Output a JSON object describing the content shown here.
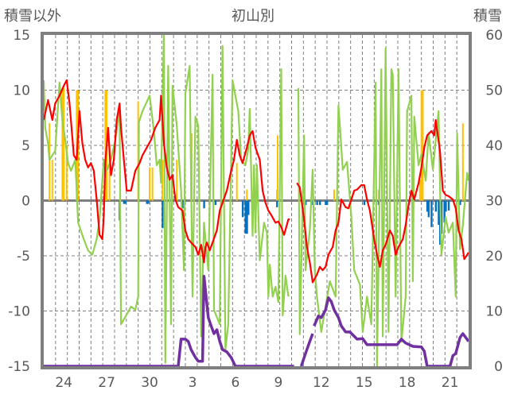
{
  "chart_data": {
    "type": "line",
    "title": "初山別",
    "ylabel_left": "積雪以外",
    "ylabel_right": "積雪",
    "grid": true,
    "x_range": [
      0,
      29.7
    ],
    "y_left_range": [
      -15,
      15
    ],
    "y_right_range": [
      0,
      60
    ],
    "y_left_ticks": [
      "15",
      "10",
      "5",
      "0",
      "-5",
      "-10",
      "-15"
    ],
    "y_left_tick_values": [
      15,
      10,
      5,
      0,
      -5,
      -10,
      -15
    ],
    "y_right_ticks": [
      "60",
      "50",
      "40",
      "30",
      "20",
      "10",
      "0"
    ],
    "y_right_tick_values": [
      60,
      50,
      40,
      30,
      20,
      10,
      0
    ],
    "x_ticks": [
      {
        "label": "24",
        "x": 1.4
      },
      {
        "label": "27",
        "x": 4.4
      },
      {
        "label": "30",
        "x": 7.4
      },
      {
        "label": "3",
        "x": 10.4
      },
      {
        "label": "6",
        "x": 13.4
      },
      {
        "label": "9",
        "x": 16.4
      },
      {
        "label": "12",
        "x": 19.4
      },
      {
        "label": "15",
        "x": 22.4
      },
      {
        "label": "18",
        "x": 25.4
      },
      {
        "label": "21",
        "x": 28.4
      }
    ],
    "colors": {
      "red": "#ff0000",
      "green": "#92d050",
      "purple": "#7030a0",
      "yellow": "#ffc000",
      "blue": "#0070c0",
      "frame": "#7f7f7f",
      "grid": "#7f7f7f"
    },
    "bars_yellow": [
      [
        0.4,
        7.0
      ],
      [
        0.6,
        3.7
      ],
      [
        1.3,
        10.2
      ],
      [
        1.4,
        10.2
      ],
      [
        1.6,
        5.0
      ],
      [
        2.3,
        10.0
      ],
      [
        2.4,
        10.0
      ],
      [
        4.3,
        10.0
      ],
      [
        4.4,
        10.0
      ],
      [
        4.6,
        5.0
      ],
      [
        6.6,
        9.0
      ],
      [
        7.4,
        3.0
      ],
      [
        7.6,
        3.0
      ],
      [
        8.3,
        3.7
      ],
      [
        9.3,
        3.7
      ],
      [
        10.3,
        1.9
      ],
      [
        10.35,
        6.1
      ],
      [
        13.5,
        3.4
      ],
      [
        14.2,
        1.0
      ],
      [
        16.3,
        1.0
      ],
      [
        16.35,
        5.9
      ],
      [
        20.3,
        1.0
      ],
      [
        23.4,
        1.0
      ],
      [
        26.3,
        1.9
      ],
      [
        26.4,
        10.0
      ],
      [
        26.5,
        10.0
      ],
      [
        29.3,
        7.0
      ]
    ],
    "bars_blue": [
      [
        5.3,
        -1.8
      ],
      [
        5.6,
        -0.3
      ],
      [
        5.7,
        -0.3
      ],
      [
        7.2,
        -0.3
      ],
      [
        7.3,
        -0.3
      ],
      [
        8.3,
        -2.5
      ],
      [
        9.7,
        -0.7
      ],
      [
        11.2,
        -0.7
      ],
      [
        12.0,
        -0.4
      ],
      [
        13.9,
        -1.5
      ],
      [
        14.1,
        -3.0
      ],
      [
        14.2,
        -3.0
      ],
      [
        14.3,
        -1.3
      ],
      [
        14.7,
        -0.6
      ],
      [
        16.3,
        -0.6
      ],
      [
        18.3,
        -0.4
      ],
      [
        18.8,
        -0.4
      ],
      [
        19.1,
        -0.4
      ],
      [
        19.3,
        -0.4
      ],
      [
        19.7,
        -0.4
      ],
      [
        19.8,
        -0.4
      ],
      [
        22.4,
        -0.4
      ],
      [
        23.4,
        -0.4
      ],
      [
        26.8,
        -1.0
      ],
      [
        26.9,
        -1.5
      ],
      [
        27.1,
        -2.4
      ],
      [
        27.4,
        -1.0
      ],
      [
        27.6,
        -2.2
      ],
      [
        27.7,
        -4.0
      ],
      [
        27.8,
        -3.0
      ],
      [
        28.0,
        -2.0
      ],
      [
        28.1,
        -1.0
      ],
      [
        28.3,
        -0.9
      ],
      [
        29.1,
        -0.4
      ]
    ],
    "line_green": [
      [
        0.0,
        10.9
      ],
      [
        0.1,
        6.6
      ],
      [
        0.3,
        5.2
      ],
      [
        0.4,
        3.7
      ],
      [
        0.6,
        4.1
      ],
      [
        0.8,
        4.5
      ],
      [
        1.1,
        10.7
      ],
      [
        1.3,
        7.3
      ],
      [
        1.5,
        5.5
      ],
      [
        1.7,
        3.4
      ],
      [
        1.9,
        2.7
      ],
      [
        2.2,
        3.7
      ],
      [
        2.4,
        -2.0
      ],
      [
        2.8,
        -3.5
      ],
      [
        3.1,
        -4.5
      ],
      [
        3.4,
        -4.9
      ],
      [
        3.7,
        -3.5
      ],
      [
        3.9,
        -1.7
      ],
      [
        4.2,
        3.7
      ],
      [
        4.4,
        2.7
      ],
      [
        4.7,
        3.7
      ],
      [
        5.0,
        5.5
      ],
      [
        5.3,
        8.3
      ],
      [
        5.4,
        -11.2
      ],
      [
        5.8,
        -10.3
      ],
      [
        6.1,
        -9.6
      ],
      [
        6.4,
        -9.9
      ],
      [
        6.6,
        -8.7
      ],
      [
        6.65,
        7.1
      ],
      [
        6.9,
        8.1
      ],
      [
        7.4,
        9.5
      ],
      [
        7.7,
        6.3
      ],
      [
        7.9,
        3.2
      ],
      [
        8.1,
        3.7
      ],
      [
        8.2,
        1.6
      ],
      [
        8.4,
        15.0
      ],
      [
        8.5,
        -14.7
      ],
      [
        8.7,
        12.2
      ],
      [
        8.9,
        -11.2
      ],
      [
        9.0,
        10.4
      ],
      [
        9.3,
        6.8
      ],
      [
        9.6,
        0.9
      ],
      [
        9.8,
        -6.3
      ],
      [
        9.9,
        9.7
      ],
      [
        10.2,
        12.2
      ],
      [
        10.4,
        -8.7
      ],
      [
        10.6,
        7.6
      ],
      [
        10.8,
        6.8
      ],
      [
        11.0,
        -12.3
      ],
      [
        11.2,
        -2.0
      ],
      [
        11.5,
        -6.3
      ],
      [
        11.8,
        11.4
      ],
      [
        11.9,
        -9.9
      ],
      [
        12.3,
        -11.2
      ],
      [
        12.5,
        14.0
      ],
      [
        12.7,
        -13.5
      ],
      [
        12.9,
        -11.2
      ],
      [
        13.2,
        10.9
      ],
      [
        13.4,
        9.5
      ],
      [
        13.6,
        8.1
      ],
      [
        13.8,
        3.7
      ],
      [
        14.1,
        3.2
      ],
      [
        14.3,
        4.7
      ],
      [
        14.4,
        8.3
      ],
      [
        14.6,
        -3.2
      ],
      [
        14.7,
        3.2
      ],
      [
        14.8,
        -2.9
      ],
      [
        14.9,
        3.2
      ],
      [
        15.1,
        -5.4
      ],
      [
        15.4,
        -2.0
      ],
      [
        15.6,
        -2.9
      ],
      [
        15.7,
        -8.7
      ],
      [
        15.8,
        -5.8
      ],
      [
        16.0,
        -8.7
      ],
      [
        16.2,
        -7.8
      ],
      [
        16.4,
        -9.2
      ],
      [
        16.6,
        11.9
      ],
      [
        16.7,
        -10.4
      ],
      [
        16.9,
        -6.8
      ],
      [
        17.1,
        -8.7
      ],
      null,
      [
        17.8,
        10.2
      ],
      [
        17.9,
        -12.1
      ],
      [
        18.2,
        5.9
      ],
      [
        18.3,
        -6.3
      ],
      [
        18.6,
        -2.7
      ],
      [
        18.8,
        2.8
      ],
      [
        18.95,
        -6.3
      ],
      [
        19.1,
        -8.7
      ],
      [
        19.4,
        -11.9
      ],
      [
        20.0,
        -7.3
      ],
      [
        20.4,
        -8.7
      ],
      [
        20.6,
        8.6
      ],
      [
        20.7,
        6.8
      ],
      [
        20.9,
        2.8
      ],
      [
        21.2,
        3.5
      ],
      [
        21.5,
        -1.5
      ],
      [
        21.7,
        -6.3
      ],
      [
        22.1,
        -7.6
      ],
      [
        22.3,
        -11.9
      ],
      [
        22.6,
        -8.7
      ],
      [
        22.9,
        -11.2
      ],
      [
        23.2,
        10.7
      ],
      [
        23.3,
        -15.0
      ],
      [
        23.6,
        11.9
      ],
      [
        23.7,
        -12.3
      ],
      [
        23.9,
        13.8
      ],
      [
        24.1,
        -11.9
      ],
      [
        24.3,
        11.9
      ],
      [
        24.4,
        11.4
      ],
      [
        24.6,
        -8.7
      ],
      [
        24.8,
        11.9
      ],
      [
        25.0,
        -12.8
      ],
      [
        25.3,
        -8.7
      ],
      [
        25.4,
        8.1
      ],
      [
        25.7,
        9.5
      ],
      [
        25.8,
        -7.3
      ],
      [
        25.9,
        7.6
      ],
      [
        26.2,
        3.2
      ],
      [
        26.4,
        4.2
      ],
      [
        26.7,
        1.8
      ],
      [
        26.9,
        6.1
      ],
      [
        27.2,
        2.8
      ],
      [
        27.6,
        8.1
      ],
      [
        27.8,
        -4.9
      ],
      [
        28.1,
        -1.5
      ],
      [
        28.3,
        -2.9
      ],
      [
        28.6,
        -2.0
      ],
      [
        28.8,
        -8.7
      ],
      [
        28.9,
        6.1
      ],
      [
        29.1,
        -4.4
      ],
      [
        29.3,
        -2.2
      ],
      [
        29.6,
        2.5
      ],
      [
        29.7,
        1.8
      ]
    ],
    "line_red": [
      [
        0.0,
        7.3
      ],
      [
        0.3,
        9.1
      ],
      [
        0.6,
        7.3
      ],
      [
        0.8,
        8.8
      ],
      [
        1.1,
        9.5
      ],
      [
        1.4,
        10.4
      ],
      [
        1.6,
        10.9
      ],
      [
        1.8,
        8.8
      ],
      [
        2.1,
        4.1
      ],
      [
        2.3,
        3.7
      ],
      [
        2.5,
        8.1
      ],
      [
        2.7,
        5.2
      ],
      [
        2.9,
        3.7
      ],
      [
        3.1,
        3.0
      ],
      [
        3.3,
        3.4
      ],
      [
        3.5,
        2.7
      ],
      [
        3.7,
        0.1
      ],
      [
        3.9,
        -3.1
      ],
      [
        4.1,
        -3.5
      ],
      [
        4.2,
        -1.3
      ],
      [
        4.3,
        3.4
      ],
      [
        4.5,
        6.6
      ],
      [
        4.7,
        2.3
      ],
      [
        4.9,
        3.7
      ],
      [
        5.1,
        7.3
      ],
      [
        5.3,
        8.8
      ],
      [
        5.4,
        6.6
      ],
      [
        5.6,
        3.7
      ],
      [
        5.8,
        0.9
      ],
      [
        6.1,
        0.9
      ],
      [
        6.4,
        2.7
      ],
      [
        6.7,
        3.4
      ],
      [
        6.9,
        4.1
      ],
      [
        7.2,
        4.8
      ],
      [
        7.5,
        5.5
      ],
      [
        7.8,
        6.6
      ],
      [
        8.1,
        7.3
      ],
      [
        8.2,
        9.5
      ],
      [
        8.4,
        5.2
      ],
      [
        8.6,
        3.0
      ],
      [
        8.8,
        1.9
      ],
      [
        9.0,
        2.3
      ],
      [
        9.2,
        0.1
      ],
      [
        9.4,
        -0.6
      ],
      [
        9.7,
        -0.9
      ],
      [
        9.9,
        -2.7
      ],
      [
        10.1,
        -3.5
      ],
      [
        10.3,
        -3.8
      ],
      [
        10.6,
        -4.2
      ],
      [
        10.8,
        -4.9
      ],
      [
        11.0,
        -4.0
      ],
      [
        11.2,
        -5.6
      ],
      [
        11.3,
        -4.2
      ],
      [
        11.4,
        -3.8
      ],
      [
        11.6,
        -4.5
      ],
      [
        11.8,
        -3.8
      ],
      [
        12.1,
        -2.7
      ],
      [
        12.3,
        -0.9
      ],
      [
        12.5,
        -0.2
      ],
      [
        12.8,
        0.9
      ],
      [
        13.1,
        2.7
      ],
      [
        13.3,
        3.7
      ],
      [
        13.5,
        5.5
      ],
      [
        13.7,
        4.1
      ],
      [
        13.9,
        3.4
      ],
      [
        14.2,
        4.8
      ],
      [
        14.4,
        5.9
      ],
      [
        14.6,
        6.3
      ],
      [
        14.8,
        4.8
      ],
      [
        15.1,
        3.7
      ],
      [
        15.3,
        0.9
      ],
      [
        15.5,
        -0.2
      ],
      [
        15.7,
        -0.9
      ],
      [
        15.9,
        -1.3
      ],
      [
        16.2,
        -2.0
      ],
      [
        16.4,
        -1.9
      ],
      [
        16.6,
        -2.4
      ],
      [
        16.8,
        -3.1
      ],
      [
        17.1,
        -1.7
      ],
      [
        17.2,
        -1.7
      ],
      null,
      [
        17.7,
        1.6
      ],
      [
        17.9,
        1.2
      ],
      [
        18.2,
        -1.7
      ],
      [
        18.4,
        -4.2
      ],
      [
        18.6,
        -5.6
      ],
      [
        18.8,
        -7.4
      ],
      [
        19.1,
        -6.7
      ],
      [
        19.3,
        -6.0
      ],
      [
        19.5,
        -6.3
      ],
      [
        19.7,
        -6.0
      ],
      [
        19.9,
        -4.9
      ],
      [
        20.2,
        -4.2
      ],
      [
        20.4,
        -2.7
      ],
      [
        20.6,
        -2.0
      ],
      [
        20.8,
        0.1
      ],
      [
        21.1,
        -0.6
      ],
      [
        21.3,
        -0.7
      ],
      [
        21.5,
        0.1
      ],
      [
        21.7,
        0.9
      ],
      [
        21.9,
        1.0
      ],
      [
        22.2,
        1.4
      ],
      [
        22.4,
        1.4
      ],
      [
        22.6,
        0.1
      ],
      [
        22.8,
        -0.9
      ],
      [
        23.1,
        -3.5
      ],
      [
        23.3,
        -4.9
      ],
      [
        23.5,
        -6.0
      ],
      [
        23.7,
        -4.5
      ],
      [
        23.9,
        -4.0
      ],
      [
        24.2,
        -2.7
      ],
      [
        24.4,
        -3.2
      ],
      [
        24.6,
        -4.9
      ],
      [
        24.8,
        -4.2
      ],
      [
        25.1,
        -3.5
      ],
      [
        25.3,
        -2.2
      ],
      [
        25.5,
        -0.4
      ],
      [
        25.7,
        0.9
      ],
      [
        25.9,
        0.1
      ],
      [
        26.2,
        1.6
      ],
      [
        26.4,
        3.0
      ],
      [
        26.6,
        4.8
      ],
      [
        26.8,
        5.9
      ],
      [
        27.1,
        6.3
      ],
      [
        27.3,
        5.9
      ],
      [
        27.4,
        7.3
      ],
      [
        27.7,
        4.5
      ],
      [
        27.9,
        0.9
      ],
      [
        28.1,
        0.5
      ],
      [
        28.3,
        0.4
      ],
      [
        28.6,
        0.1
      ],
      [
        28.8,
        -0.7
      ],
      [
        29.0,
        -2.7
      ],
      [
        29.2,
        -3.5
      ],
      [
        29.4,
        -5.3
      ],
      [
        29.7,
        -4.7
      ]
    ],
    "line_purple_snow_depth": [
      [
        0.0,
        0
      ],
      [
        9.4,
        0
      ],
      [
        9.6,
        4.9
      ],
      [
        9.9,
        4.9
      ],
      [
        10.1,
        4.5
      ],
      [
        10.3,
        3.0
      ],
      [
        10.6,
        1.6
      ],
      [
        10.8,
        0.9
      ],
      [
        11.1,
        0.9
      ],
      [
        11.2,
        16.3
      ],
      [
        11.5,
        8.8
      ],
      [
        11.7,
        7.3
      ],
      [
        11.9,
        5.9
      ],
      [
        12.1,
        6.6
      ],
      [
        12.3,
        4.5
      ],
      [
        12.5,
        3.0
      ],
      [
        12.8,
        2.6
      ],
      [
        13.1,
        1.6
      ],
      [
        13.4,
        0
      ],
      [
        17.5,
        0
      ],
      null,
      [
        18.0,
        0
      ],
      [
        18.3,
        2.3
      ],
      [
        18.6,
        4.5
      ],
      [
        18.8,
        5.9
      ],
      null,
      [
        18.9,
        7.3
      ],
      [
        19.2,
        9.1
      ],
      [
        19.4,
        8.8
      ],
      [
        19.7,
        10.2
      ],
      [
        19.9,
        12.4
      ],
      [
        20.1,
        11.7
      ],
      [
        20.3,
        10.2
      ],
      [
        20.6,
        8.8
      ],
      [
        20.8,
        7.3
      ],
      [
        21.1,
        6.2
      ],
      [
        21.4,
        6.2
      ],
      [
        21.9,
        4.9
      ],
      [
        22.3,
        5.0
      ],
      [
        22.6,
        3.9
      ],
      [
        24.7,
        3.9
      ],
      [
        25.0,
        4.9
      ],
      [
        25.3,
        4.2
      ],
      [
        25.8,
        3.6
      ],
      [
        26.4,
        3.5
      ],
      [
        26.6,
        2.7
      ],
      [
        26.8,
        0
      ],
      [
        28.4,
        0
      ],
      [
        28.6,
        1.9
      ],
      [
        28.8,
        2.3
      ],
      [
        29.1,
        5.2
      ],
      [
        29.3,
        5.9
      ],
      [
        29.7,
        4.5
      ]
    ]
  }
}
